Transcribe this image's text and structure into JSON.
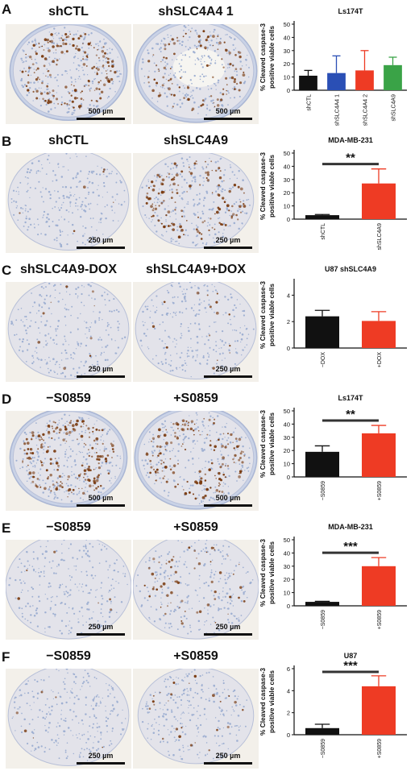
{
  "panels": [
    {
      "letter": "A",
      "left_title": "shCTL",
      "right_title": "shSLC4A4 1",
      "scale_left": "500 µm",
      "scale_right": "500 µm"
    },
    {
      "letter": "B",
      "left_title": "shCTL",
      "right_title": "shSLC4A9",
      "scale_left": "250 µm",
      "scale_right": "250 µm"
    },
    {
      "letter": "C",
      "left_title": "shSLC4A9-DOX",
      "right_title": "shSLC4A9+DOX",
      "scale_left": "250 µm",
      "scale_right": "250 µm"
    },
    {
      "letter": "D",
      "left_title": "−S0859",
      "right_title": "+S0859",
      "scale_left": "500 µm",
      "scale_right": "500 µm"
    },
    {
      "letter": "E",
      "left_title": "−S0859",
      "right_title": "+S0859",
      "scale_left": "250 µm",
      "scale_right": "250 µm"
    },
    {
      "letter": "F",
      "left_title": "−S0859",
      "right_title": "+S0859",
      "scale_left": "250 µm",
      "scale_right": "250 µm"
    }
  ],
  "colors": {
    "black": "#111111",
    "blue": "#2a4fb5",
    "red": "#ee3b24",
    "green": "#3aa347",
    "stain_blue": "#9fb0d2",
    "stain_brown": "#7a3b10"
  },
  "chart_data": [
    {
      "type": "bar",
      "title": "Ls174T",
      "ylabel": "% Cleaved caspase-3 positive viable cells",
      "categories": [
        "shCTL",
        "shSLC4A4 1",
        "shSLC4A4 2",
        "shSLC4A9"
      ],
      "values": [
        11,
        13,
        15,
        19
      ],
      "errors": [
        4,
        13,
        15,
        6
      ],
      "ylim": [
        0,
        50
      ],
      "yticks": [
        0,
        10,
        20,
        30,
        40,
        50
      ],
      "bar_colors": [
        "#111111",
        "#2a4fb5",
        "#ee3b24",
        "#3aa347"
      ],
      "significance": ""
    },
    {
      "type": "bar",
      "title": "MDA-MB-231",
      "ylabel": "% Cleaved caspase-3 positive viable cells",
      "categories": [
        "shCTL",
        "shSLC4A9"
      ],
      "values": [
        3,
        27
      ],
      "errors": [
        0.5,
        11
      ],
      "ylim": [
        0,
        50
      ],
      "yticks": [
        0,
        10,
        20,
        30,
        40,
        50
      ],
      "bar_colors": [
        "#111111",
        "#ee3b24"
      ],
      "significance": "**"
    },
    {
      "type": "bar",
      "title": "U87 shSLC4A9",
      "ylabel": "% Cleaved caspase-3 positive viable cells",
      "categories": [
        "−DOX",
        "+DOX"
      ],
      "values": [
        2.4,
        2.05
      ],
      "errors": [
        0.45,
        0.7
      ],
      "ylim": [
        0,
        5
      ],
      "yticks": [
        0,
        2,
        4
      ],
      "bar_colors": [
        "#111111",
        "#ee3b24"
      ],
      "significance": ""
    },
    {
      "type": "bar",
      "title": "Ls174T",
      "ylabel": "% Cleaved caspase-3 positive viable cells",
      "categories": [
        "−S0859",
        "+S0859"
      ],
      "values": [
        19,
        33
      ],
      "errors": [
        4.5,
        6
      ],
      "ylim": [
        0,
        50
      ],
      "yticks": [
        0,
        10,
        20,
        30,
        40,
        50
      ],
      "bar_colors": [
        "#111111",
        "#ee3b24"
      ],
      "significance": "**"
    },
    {
      "type": "bar",
      "title": "MDA-MB-231",
      "ylabel": "% Cleaved caspase-3 positive viable cells",
      "categories": [
        "−S0859",
        "+S0859"
      ],
      "values": [
        3,
        30
      ],
      "errors": [
        0.4,
        6.5
      ],
      "ylim": [
        0,
        50
      ],
      "yticks": [
        0,
        10,
        20,
        30,
        40,
        50
      ],
      "bar_colors": [
        "#111111",
        "#ee3b24"
      ],
      "significance": "***"
    },
    {
      "type": "bar",
      "title": "U87",
      "ylabel": "% Cleaved caspase-3 positive viable cells",
      "categories": [
        "−S0859",
        "+S0859"
      ],
      "values": [
        0.6,
        4.4
      ],
      "errors": [
        0.35,
        0.95
      ],
      "ylim": [
        0,
        6
      ],
      "yticks": [
        0,
        2,
        4,
        6
      ],
      "bar_colors": [
        "#111111",
        "#ee3b24"
      ],
      "significance": "***"
    }
  ]
}
